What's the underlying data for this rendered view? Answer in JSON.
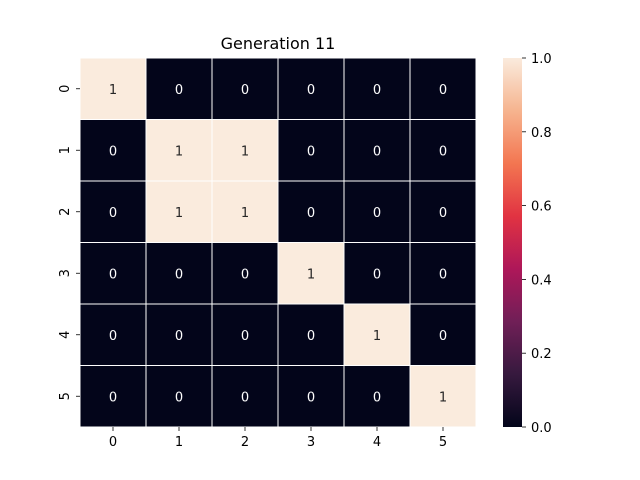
{
  "chart_data": {
    "type": "heatmap",
    "title": "Generation 11",
    "xlabel": "",
    "ylabel": "",
    "x_categories": [
      "0",
      "1",
      "2",
      "3",
      "4",
      "5"
    ],
    "y_categories": [
      "0",
      "1",
      "2",
      "3",
      "4",
      "5"
    ],
    "values": [
      [
        1,
        0,
        0,
        0,
        0,
        0
      ],
      [
        0,
        1,
        1,
        0,
        0,
        0
      ],
      [
        0,
        1,
        1,
        0,
        0,
        0
      ],
      [
        0,
        0,
        0,
        1,
        0,
        0
      ],
      [
        0,
        0,
        0,
        0,
        1,
        0
      ],
      [
        0,
        0,
        0,
        0,
        0,
        1
      ]
    ],
    "annotations_shown": true,
    "colorbar": {
      "range": [
        0.0,
        1.0
      ],
      "ticks": [
        "0.0",
        "0.2",
        "0.4",
        "0.6",
        "0.8",
        "1.0"
      ],
      "colormap_stops": [
        "#03051a",
        "#36193e",
        "#701f57",
        "#ae1759",
        "#e13342",
        "#f37651",
        "#f6b48f",
        "#faebdd"
      ]
    },
    "colors": {
      "high_cell": "#faebdd",
      "low_cell": "#03051a",
      "high_text": "#262626",
      "low_text": "#ffffff",
      "grid_line": "#ffffff"
    }
  }
}
